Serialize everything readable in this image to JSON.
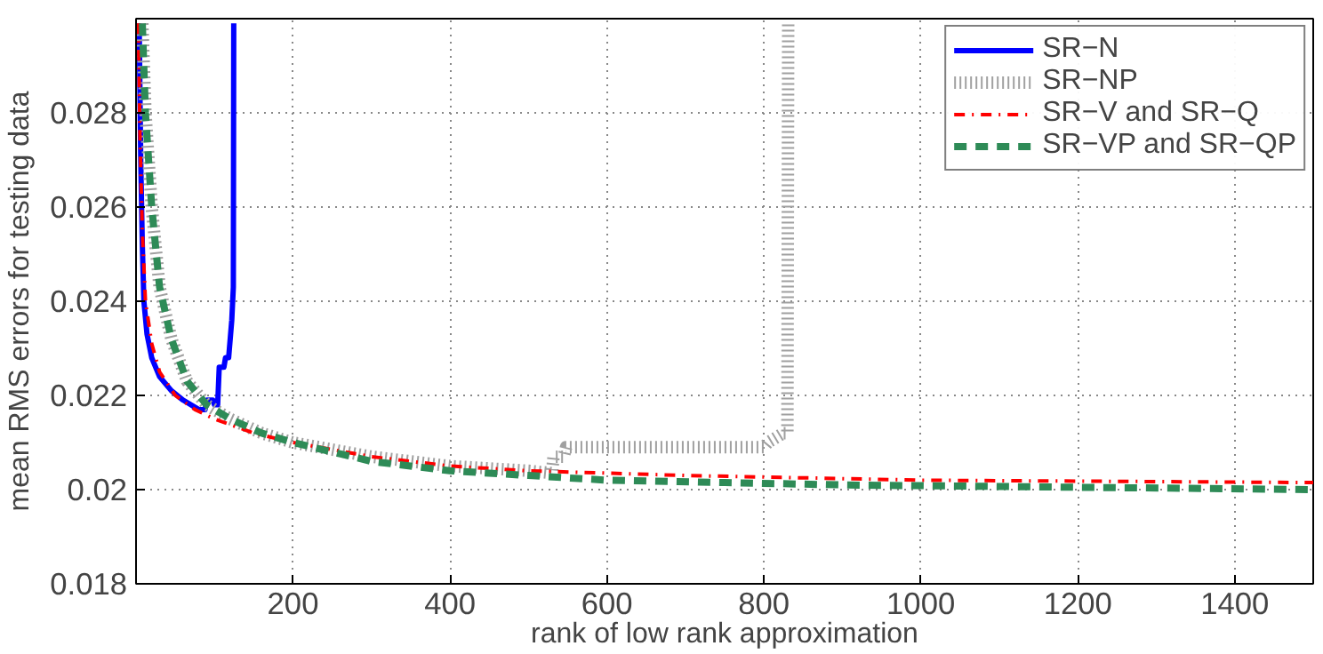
{
  "chart_data": {
    "type": "line",
    "xlabel": "rank of low rank approximation",
    "ylabel": "mean RMS errors for testing data",
    "xlim": [
      0,
      1500
    ],
    "ylim": [
      0.018,
      0.03
    ],
    "xticks": [
      200,
      400,
      600,
      800,
      1000,
      1200,
      1400
    ],
    "yticks": [
      0.018,
      0.02,
      0.022,
      0.024,
      0.026,
      0.028
    ],
    "grid": true,
    "legend": "top right",
    "series": [
      {
        "name": "SR−N",
        "color": "#0000ff",
        "line_style": "solid",
        "x": [
          4,
          6,
          8,
          10,
          14,
          20,
          30,
          45,
          60,
          80,
          88,
          90,
          98,
          100,
          104,
          106,
          112,
          114,
          118,
          120,
          122,
          124,
          124.5
        ],
        "values": [
          0.0299,
          0.027,
          0.0252,
          0.024,
          0.0233,
          0.0228,
          0.0224,
          0.0221,
          0.0219,
          0.0217,
          0.0217,
          0.0219,
          0.0219,
          0.0218,
          0.0218,
          0.0226,
          0.0226,
          0.0228,
          0.0228,
          0.0232,
          0.0236,
          0.0243,
          0.0299
        ]
      },
      {
        "name": "SR−NP",
        "color": "#a0a0a0",
        "line_style": "dotted",
        "x": [
          8,
          12,
          20,
          30,
          45,
          65,
          90,
          120,
          160,
          200,
          300,
          400,
          500,
          530,
          532,
          545,
          548,
          700,
          800,
          805,
          815,
          825,
          830,
          831
        ],
        "values": [
          0.0299,
          0.028,
          0.026,
          0.0243,
          0.0232,
          0.0223,
          0.0218,
          0.0215,
          0.0212,
          0.021,
          0.0207,
          0.0205,
          0.0204,
          0.02035,
          0.0207,
          0.0207,
          0.0209,
          0.0209,
          0.0209,
          0.021,
          0.0211,
          0.0212,
          0.0212,
          0.0299
        ]
      },
      {
        "name": "SR−V and SR−Q",
        "color": "#ff0000",
        "line_style": "dashdot",
        "x": [
          3,
          5,
          8,
          12,
          20,
          30,
          50,
          75,
          100,
          150,
          200,
          300,
          400,
          500,
          700,
          1000,
          1200,
          1500
        ],
        "values": [
          0.0299,
          0.0275,
          0.0255,
          0.024,
          0.0231,
          0.0225,
          0.022,
          0.0217,
          0.0215,
          0.0212,
          0.021,
          0.0207,
          0.0205,
          0.0204,
          0.0203,
          0.0202,
          0.02018,
          0.02015
        ]
      },
      {
        "name": "SR−VP and SR−QP",
        "color": "#2e8b57",
        "line_style": "dashed",
        "x": [
          8,
          12,
          20,
          30,
          45,
          65,
          90,
          120,
          160,
          200,
          300,
          400,
          500,
          600,
          750,
          900,
          1200,
          1500
        ],
        "values": [
          0.0299,
          0.028,
          0.026,
          0.0243,
          0.0232,
          0.0223,
          0.0218,
          0.0215,
          0.0212,
          0.021,
          0.0206,
          0.0204,
          0.0203,
          0.0202,
          0.02015,
          0.0201,
          0.02005,
          0.02
        ]
      }
    ]
  }
}
